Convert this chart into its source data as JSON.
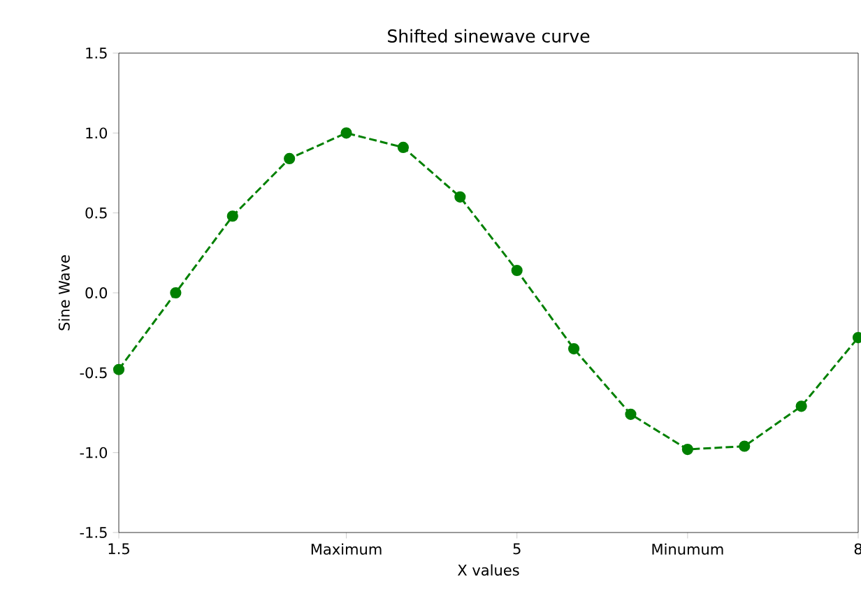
{
  "chart_data": {
    "type": "line",
    "title": "Shifted sinewave curve",
    "xlabel": "X values",
    "ylabel": "Sine Wave",
    "x": [
      1.5,
      2,
      2.5,
      3,
      3.5,
      4,
      4.5,
      5,
      5.5,
      6,
      6.5,
      7,
      7.5,
      8
    ],
    "series": [
      {
        "color": "#008000",
        "values": [
          -0.48,
          0.0,
          0.48,
          0.84,
          1.0,
          0.91,
          0.6,
          0.14,
          -0.35,
          -0.76,
          -0.98,
          -0.96,
          -0.71,
          -0.28
        ]
      }
    ],
    "xlim": [
      1.5,
      8
    ],
    "ylim": [
      -1.5,
      1.5
    ],
    "xticks": [
      1.5,
      {
        "value": 3.5,
        "label": "Maximum"
      },
      5,
      {
        "value": 6.5,
        "label": "Minumum"
      },
      8
    ],
    "yticks": [
      -1.5,
      {
        "value": -1,
        "label": "-1.0"
      },
      -0.5,
      {
        "value": 0,
        "label": "0.0"
      },
      0.5,
      {
        "value": 1,
        "label": "1.0"
      },
      1.5
    ],
    "marker": "circle",
    "line_style": "dashed"
  }
}
